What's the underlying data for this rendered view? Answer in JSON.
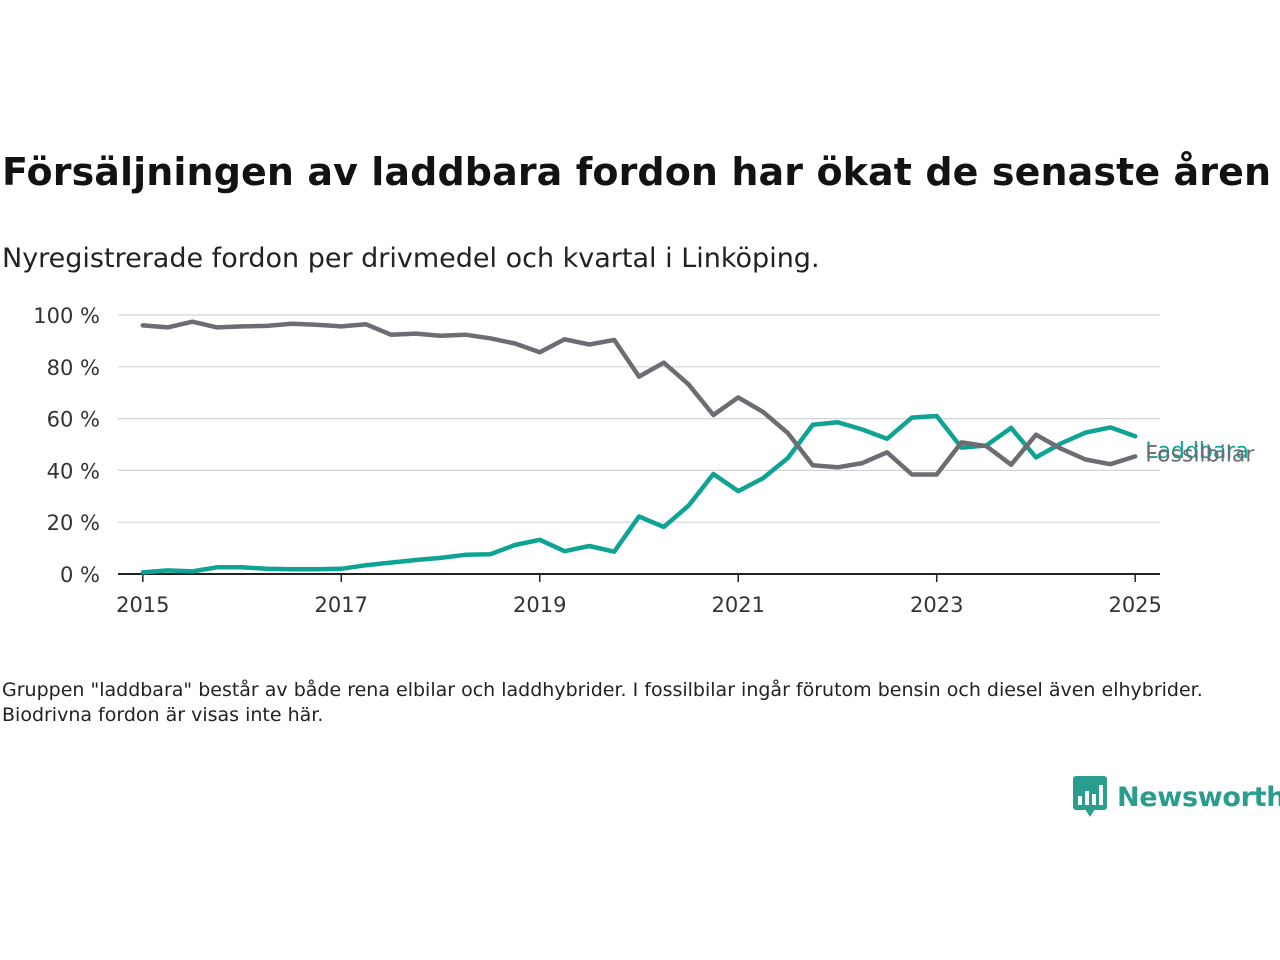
{
  "title": "Försäljningen av laddbara fordon har ökat de senaste åren",
  "subtitle": "Nyregistrerade fordon per drivmedel och kvartal i Linköping.",
  "note": "Gruppen \"laddbara\" består av både rena elbilar och laddhybrider. I fossilbilar ingår förutom bensin och diesel även elhybrider. Biodrivna fordon är visas inte här.",
  "brand": {
    "name": "Newsworthy",
    "icon": "newsworthy-logo-icon",
    "color": "#2a9d8f"
  },
  "chart_data": {
    "type": "line",
    "x_ticks": [
      "2015",
      "2017",
      "2019",
      "2021",
      "2023",
      "2025"
    ],
    "y_ticks": [
      "0 %",
      "20 %",
      "40 %",
      "60 %",
      "80 %",
      "100 %"
    ],
    "ylim": [
      0,
      100
    ],
    "xlim": [
      "2014-Q4",
      "2025-Q2"
    ],
    "grid": true,
    "x": [
      "2015-Q1",
      "2015-Q2",
      "2015-Q3",
      "2015-Q4",
      "2016-Q1",
      "2016-Q2",
      "2016-Q3",
      "2016-Q4",
      "2017-Q1",
      "2017-Q2",
      "2017-Q3",
      "2017-Q4",
      "2018-Q1",
      "2018-Q2",
      "2018-Q3",
      "2018-Q4",
      "2019-Q1",
      "2019-Q2",
      "2019-Q3",
      "2019-Q4",
      "2020-Q1",
      "2020-Q2",
      "2020-Q3",
      "2020-Q4",
      "2021-Q1",
      "2021-Q2",
      "2021-Q3",
      "2021-Q4",
      "2022-Q1",
      "2022-Q2",
      "2022-Q3",
      "2022-Q4",
      "2023-Q1",
      "2023-Q2",
      "2023-Q3",
      "2023-Q4",
      "2024-Q1",
      "2024-Q2",
      "2024-Q3",
      "2024-Q4",
      "2025-Q1"
    ],
    "series": [
      {
        "name": "Fossilbilar",
        "color": "#6e6c72",
        "values": [
          96.0,
          95.2,
          97.4,
          95.2,
          95.6,
          95.8,
          96.6,
          96.2,
          95.6,
          96.4,
          92.4,
          92.8,
          92.0,
          92.4,
          91.0,
          89.0,
          85.6,
          90.6,
          88.6,
          90.4,
          76.2,
          81.6,
          73.2,
          61.4,
          68.2,
          62.6,
          54.4,
          42.0,
          41.2,
          42.8,
          47.0,
          38.4,
          38.4,
          50.8,
          49.4,
          42.2,
          53.8,
          48.4,
          44.2,
          42.4,
          45.4
        ]
      },
      {
        "name": "Laddbara",
        "color": "#0ea394",
        "values": [
          0.6,
          1.4,
          1.0,
          2.6,
          2.6,
          2.0,
          1.8,
          1.8,
          2.0,
          3.4,
          4.4,
          5.4,
          6.2,
          7.4,
          7.6,
          11.2,
          13.2,
          8.8,
          10.8,
          8.6,
          22.2,
          18.2,
          26.4,
          38.6,
          32.0,
          37.0,
          44.8,
          57.6,
          58.6,
          55.8,
          52.2,
          60.4,
          61.0,
          48.8,
          49.6,
          56.4,
          45.0,
          50.4,
          54.6,
          56.6,
          53.2
        ]
      }
    ]
  }
}
